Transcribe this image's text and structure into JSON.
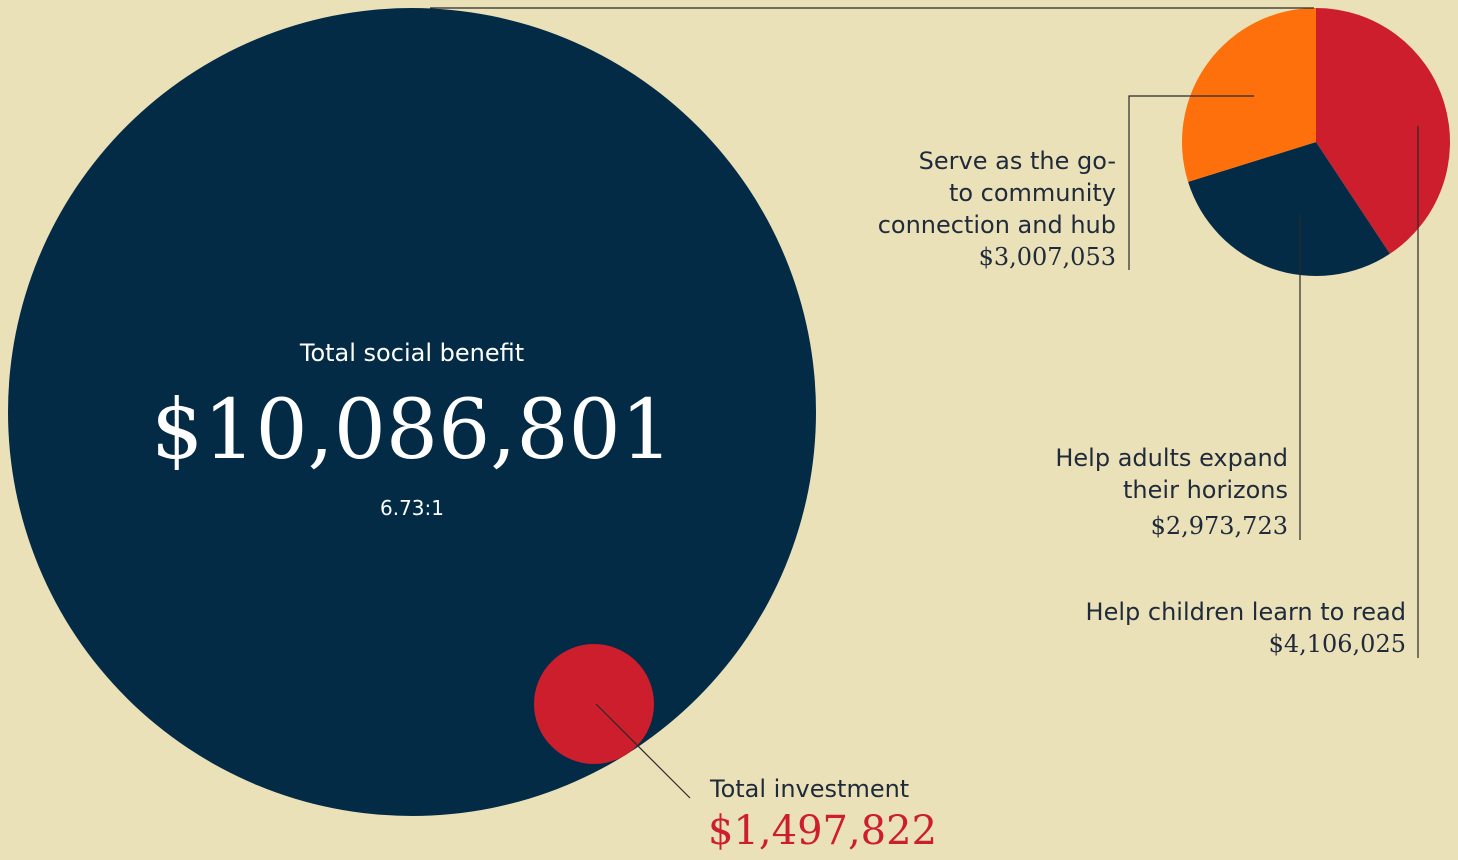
{
  "colors": {
    "background": "#ebe1b9",
    "navy": "#042b46",
    "red": "#cc1e2c",
    "orange": "#fd700b",
    "text": "#1f2a3a",
    "line": "#2a2a2a",
    "white": "#ffffff"
  },
  "summary": {
    "benefit_label": "Total social benefit",
    "benefit_value": "$10,086,801",
    "ratio": "6.73:1",
    "investment_label": "Total investment",
    "investment_value": "$1,497,822"
  },
  "legend": {
    "community": {
      "label_lines": [
        "Serve as the go-",
        "to community",
        "connection and hub"
      ],
      "value": "$3,007,053"
    },
    "adults": {
      "label_lines": [
        "Help adults expand",
        "their horizons"
      ],
      "value": "$2,973,723"
    },
    "children": {
      "label_lines": [
        "Help children learn to read"
      ],
      "value": "$4,106,025"
    }
  },
  "chart_data": [
    {
      "type": "bubble",
      "series": [
        {
          "name": "Total social benefit",
          "value": 10086801,
          "color": "#042b46"
        },
        {
          "name": "Total investment",
          "value": 1497822,
          "color": "#cc1e2c"
        }
      ],
      "annotations": [
        "6.73:1"
      ]
    },
    {
      "type": "pie",
      "categories": [
        "Help children learn to read",
        "Help adults expand their horizons",
        "Serve as the go-to community connection and hub"
      ],
      "values": [
        4106025,
        2973723,
        3007053
      ],
      "colors": [
        "#cc1e2c",
        "#042b46",
        "#fd700b"
      ]
    }
  ]
}
